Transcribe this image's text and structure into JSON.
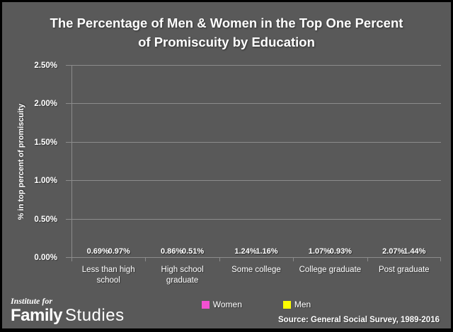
{
  "title": {
    "line1": "The Percentage of Men & Women in the Top One Percent",
    "line2": "of Promiscuity by Education"
  },
  "chart_data": {
    "type": "bar",
    "categories": [
      "Less than high school",
      "High school graduate",
      "Some college",
      "College graduate",
      "Post graduate"
    ],
    "series": [
      {
        "name": "Women",
        "color": "#F450D2",
        "values": [
          0.69,
          0.86,
          1.24,
          1.07,
          2.07
        ]
      },
      {
        "name": "Men",
        "color": "#FFFF00",
        "values": [
          0.97,
          0.51,
          1.16,
          0.93,
          1.44
        ]
      }
    ],
    "ylabel": "% in top percent of promiscuity",
    "ylim": [
      0,
      2.5
    ],
    "ytick_labels": [
      "0.00%",
      "0.50%",
      "1.00%",
      "1.50%",
      "2.00%",
      "2.50%"
    ],
    "data_labels": [
      [
        "0.69%",
        "0.86%",
        "1.24%",
        "1.07%",
        "2.07%"
      ],
      [
        "0.97%",
        "0.51%",
        "1.16%",
        "0.93%",
        "1.44%"
      ]
    ],
    "grid": true,
    "legend_position": "bottom-center"
  },
  "footer": {
    "logo_top": "Institute for",
    "logo_bold": "Family",
    "logo_light": "Studies",
    "source": "Source: General Social Survey, 1989-2016"
  },
  "colors": {
    "background": "#595959",
    "border": "#000000",
    "grid": "#8C8C8C",
    "text": "#FFFFFF",
    "women": "#F450D2",
    "men": "#FFFF00"
  }
}
